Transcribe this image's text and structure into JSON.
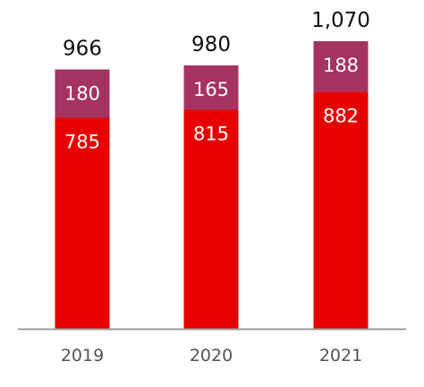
{
  "chart_data": {
    "type": "bar",
    "stacked": true,
    "categories": [
      "2019",
      "2020",
      "2021"
    ],
    "series": [
      {
        "values": [
          785,
          815,
          882
        ],
        "color": "#e80000"
      },
      {
        "values": [
          180,
          165,
          188
        ],
        "color": "#a43361"
      }
    ],
    "totals": [
      "966",
      "980",
      "1,070"
    ],
    "segment_labels": [
      [
        "785",
        "815",
        "882"
      ],
      [
        "180",
        "165",
        "188"
      ]
    ],
    "axis_color": "#999999",
    "ylim": [
      0,
      1070
    ],
    "grid": false,
    "legend": "none"
  }
}
